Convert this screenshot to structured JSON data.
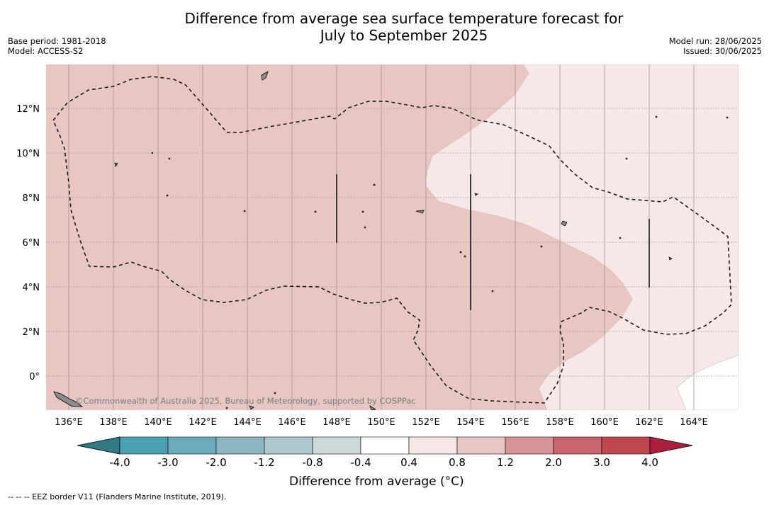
{
  "title_line1": "Difference from average sea surface temperature forecast for",
  "title_line2": "July to September 2025",
  "base_period": "Base period: 1981-2018",
  "model": "Model: ACCESS-S2",
  "model_run": "Model run: 28/06/2025",
  "issued": "Issued: 30/06/2025",
  "credit": "©Commonwealth of Australia 2025, Bureau of Meteorology, supported by COSPPac",
  "x_ticks": [
    "136°E",
    "138°E",
    "140°E",
    "142°E",
    "144°E",
    "146°E",
    "148°E",
    "150°E",
    "152°E",
    "154°E",
    "156°E",
    "158°E",
    "160°E",
    "162°E",
    "164°E"
  ],
  "y_ticks": [
    "12°N",
    "10°N",
    "8°N",
    "6°N",
    "4°N",
    "2°N",
    "0°"
  ],
  "colorbar": {
    "label": "Difference from average (°C)",
    "ticks": [
      "-4.0",
      "-3.0",
      "-2.0",
      "-1.2",
      "-0.8",
      "-0.4",
      "0.4",
      "0.8",
      "1.2",
      "2.0",
      "3.0",
      "4.0"
    ],
    "colors": [
      "#2f7a86",
      "#4aa2b3",
      "#6cabbb",
      "#8cb7c2",
      "#adc9cd",
      "#cdd8d9",
      "#ffffff",
      "#f6e8e6",
      "#e8c7c3",
      "#d79497",
      "#c9656c",
      "#c0474f",
      "#ae1e3a"
    ]
  },
  "map_colors": {
    "zone_0_8_1_2": "#e8c7c3",
    "zone_0_4_0_8": "#f6e8e6",
    "zone_neutral": "#ffffff",
    "land": "#8c8c8c"
  },
  "footer": "--  --  -- EEZ border V11 (Flanders Marine Institute, 2019)."
}
